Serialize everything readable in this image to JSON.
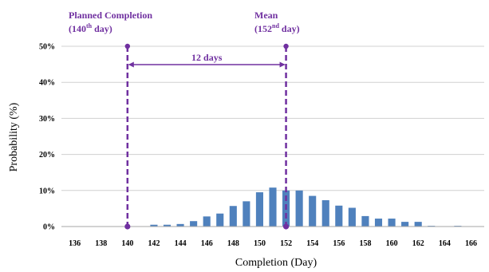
{
  "chart_data": {
    "type": "bar",
    "x": [
      136,
      137,
      138,
      139,
      140,
      141,
      142,
      143,
      144,
      145,
      146,
      147,
      148,
      149,
      150,
      151,
      152,
      153,
      154,
      155,
      156,
      157,
      158,
      159,
      160,
      161,
      162,
      163,
      164,
      165,
      166
    ],
    "values": [
      0,
      0,
      0,
      0,
      0,
      0.1,
      0.5,
      0.5,
      0.7,
      1.5,
      2.8,
      3.6,
      5.7,
      7.0,
      9.5,
      10.8,
      10.0,
      10.0,
      8.5,
      7.3,
      5.8,
      5.2,
      2.9,
      2.2,
      2.2,
      1.3,
      1.3,
      0.2,
      0.1,
      0.2,
      0
    ],
    "x_ticks": [
      "136",
      "138",
      "140",
      "142",
      "144",
      "146",
      "148",
      "150",
      "152",
      "154",
      "156",
      "158",
      "160",
      "162",
      "164",
      "166"
    ],
    "y_ticks": [
      "0%",
      "10%",
      "20%",
      "30%",
      "40%",
      "50%"
    ],
    "xlim": [
      135,
      167
    ],
    "ylim": [
      0,
      50
    ],
    "xlabel": "Completion (Day)",
    "ylabel": "Probability (%)",
    "grid": "horizontal",
    "bar_color": "#4F81BD",
    "marker_color": "#7030A0",
    "annotations": {
      "planned": {
        "x": 140,
        "label_line1": "Planned Completion",
        "label_line2_prefix": "(140",
        "label_line2_sup": "th",
        "label_line2_suffix": " day)"
      },
      "mean": {
        "x": 152,
        "label_line1": "Mean",
        "label_line2_prefix": "(152",
        "label_line2_sup": "nd",
        "label_line2_suffix": " day)"
      },
      "span_label": "12 days"
    }
  }
}
